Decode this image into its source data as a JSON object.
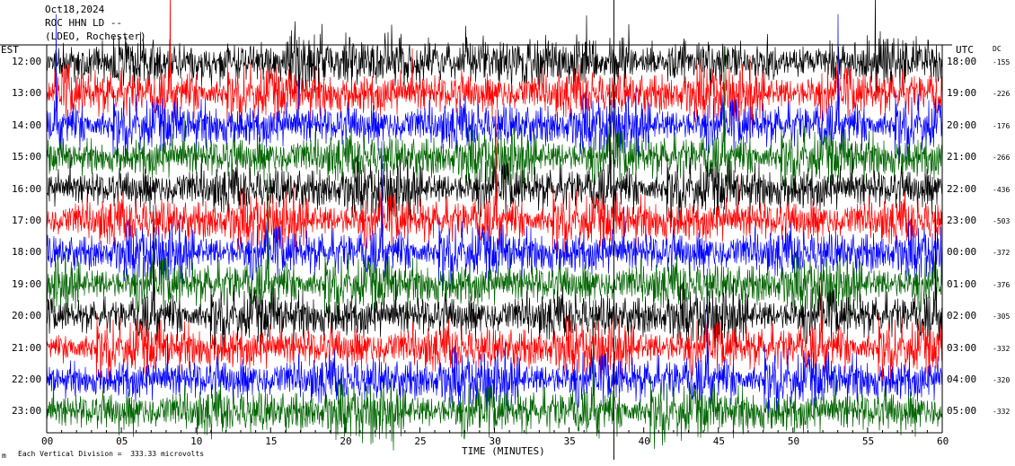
{
  "header": {
    "date": "Oct18,2024",
    "station": "ROC HHN LD --",
    "location": "(LDEO, Rochester)"
  },
  "labels": {
    "left_zone": "EST",
    "right_zone": "UTC",
    "dc_header": "DC"
  },
  "footer": {
    "scale_note": "Each Vertical Division =  333.33 microvolts",
    "mark": "m"
  },
  "chart_data": {
    "type": "line",
    "title": "",
    "xlabel": "TIME (MINUTES)",
    "ylabel": "",
    "xlim": [
      0,
      60
    ],
    "x_ticks": [
      "00",
      "05",
      "10",
      "15",
      "20",
      "25",
      "30",
      "35",
      "40",
      "45",
      "50",
      "55",
      "60"
    ],
    "grid": false,
    "trace_colors": [
      "#000000",
      "#ff0000",
      "#0000ff",
      "#006400"
    ],
    "series": [
      {
        "est": "12:00",
        "utc": "18:00",
        "dc": "-155"
      },
      {
        "est": "13:00",
        "utc": "19:00",
        "dc": "-226"
      },
      {
        "est": "14:00",
        "utc": "20:00",
        "dc": "-176"
      },
      {
        "est": "15:00",
        "utc": "21:00",
        "dc": "-266"
      },
      {
        "est": "16:00",
        "utc": "22:00",
        "dc": "-436"
      },
      {
        "est": "17:00",
        "utc": "23:00",
        "dc": "-503"
      },
      {
        "est": "18:00",
        "utc": "00:00",
        "dc": "-372"
      },
      {
        "est": "19:00",
        "utc": "01:00",
        "dc": "-376"
      },
      {
        "est": "20:00",
        "utc": "02:00",
        "dc": "-305"
      },
      {
        "est": "21:00",
        "utc": "03:00",
        "dc": "-332"
      },
      {
        "est": "22:00",
        "utc": "04:00",
        "dc": "-320"
      },
      {
        "est": "23:00",
        "utc": "05:00",
        "dc": "-332"
      }
    ],
    "marker_minute": 38
  }
}
